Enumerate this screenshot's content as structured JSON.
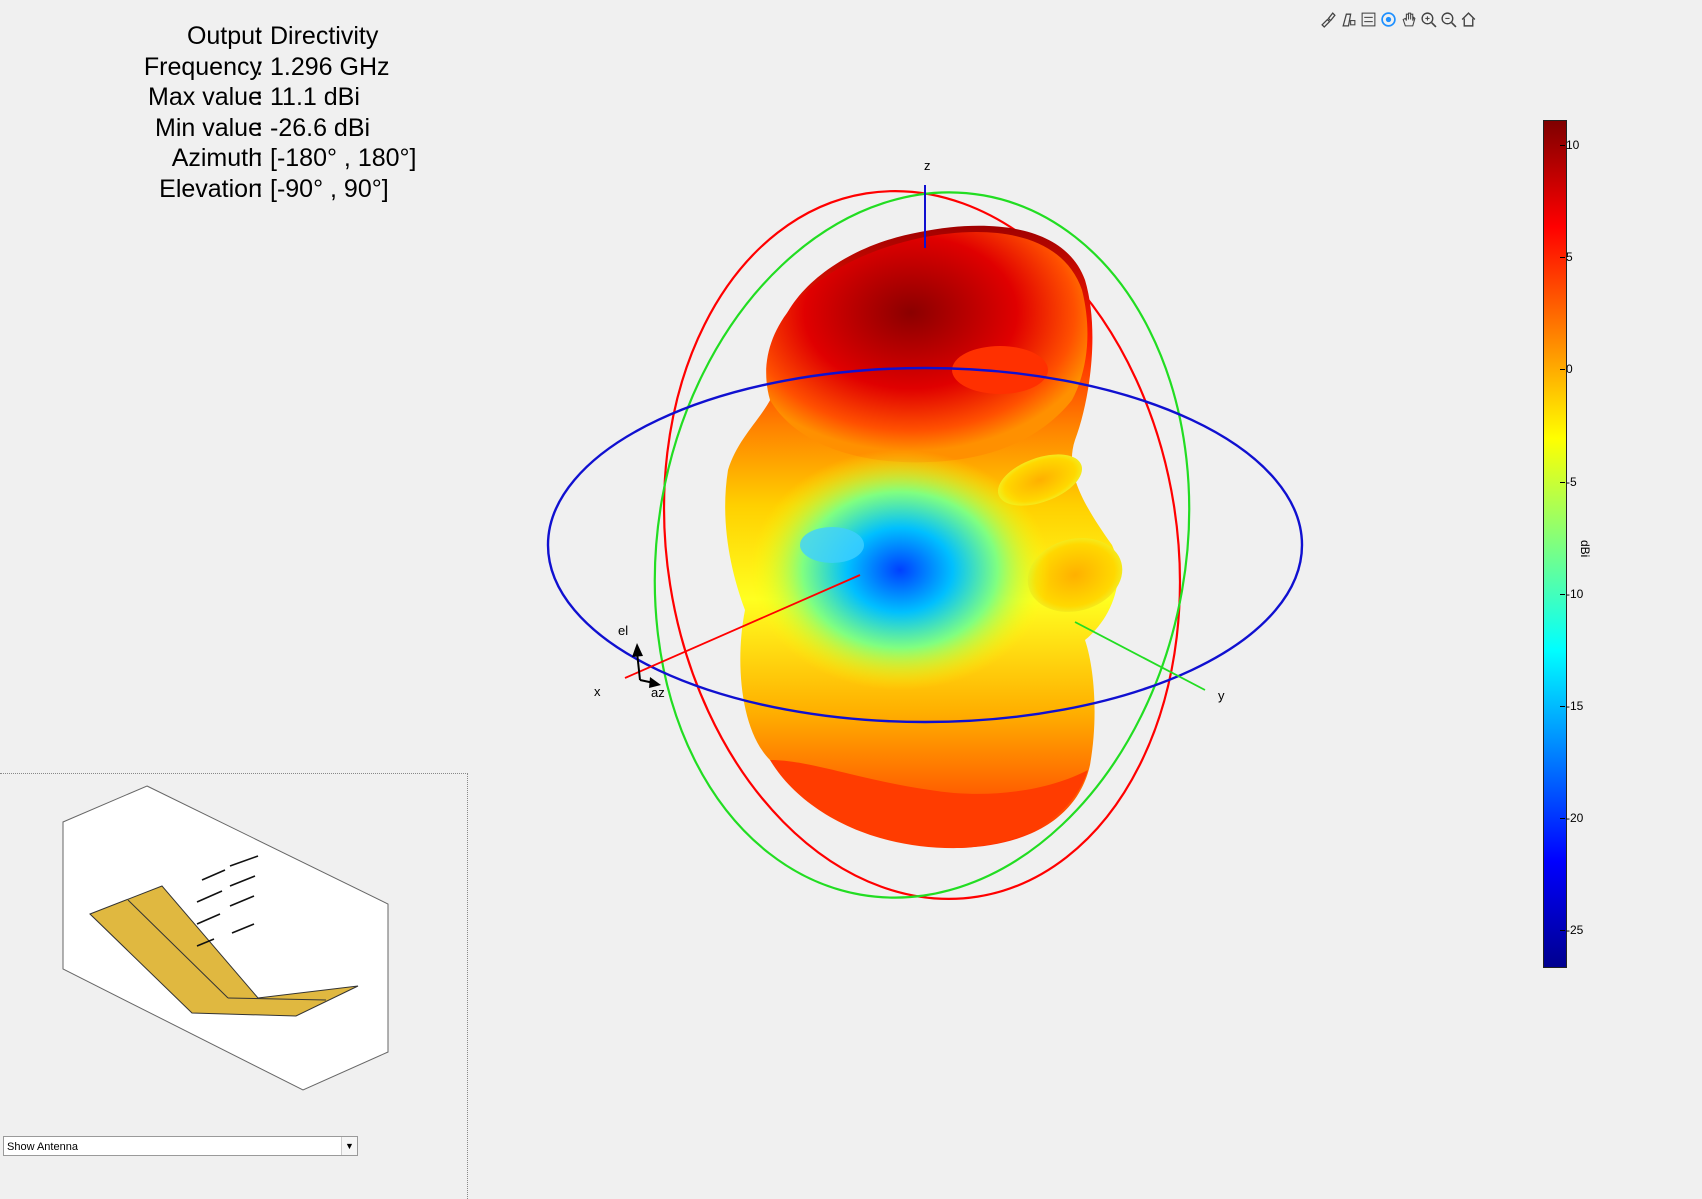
{
  "info": [
    {
      "label": "Output",
      "value": "Directivity"
    },
    {
      "label": "Frequency",
      "value": "1.296 GHz"
    },
    {
      "label": "Max value",
      "value": "11.1 dBi"
    },
    {
      "label": "Min value",
      "value": "-26.6 dBi"
    },
    {
      "label": "Azimuth",
      "value": "[-180° , 180°]"
    },
    {
      "label": "Elevation",
      "value": "[-90° , 90°]"
    }
  ],
  "axes": {
    "z": "z",
    "x": "x",
    "y": "y",
    "el": "el",
    "az": "az"
  },
  "colorbar": {
    "unit": "dBi",
    "ticks": [
      "10",
      "5",
      "0",
      "-5",
      "-10",
      "-15",
      "-20",
      "-25"
    ],
    "range": [
      -26.6,
      11.1
    ]
  },
  "toolbar": [
    "brush-icon",
    "data-tip-icon",
    "legend-icon",
    "rotate-icon",
    "pan-icon",
    "zoom-in-icon",
    "zoom-out-icon",
    "home-icon"
  ],
  "dropdown": {
    "selected": "Show Antenna"
  },
  "colors": {
    "x_axis": "#ff0000",
    "y_axis": "#00cc00",
    "z_axis": "#0000cc",
    "patch": "#e0b840"
  }
}
